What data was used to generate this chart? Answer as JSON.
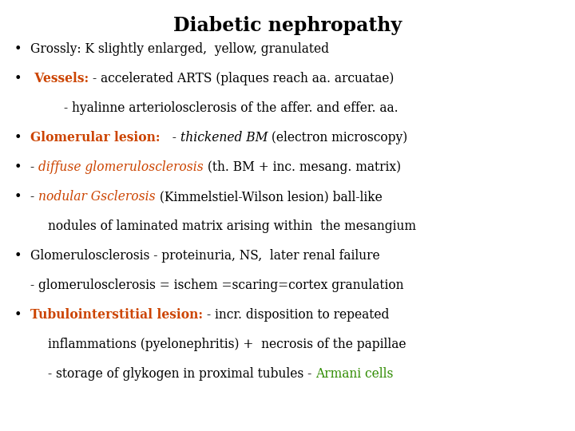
{
  "title": "Diabetic nephropathy",
  "title_color": "#000000",
  "title_fontsize": 17,
  "bg_color": "#ffffff",
  "orange": "#CC4400",
  "green": "#2E8B00",
  "black": "#000000",
  "body_fontsize": 11.2,
  "lines": [
    {
      "bullet": true,
      "indent": 0,
      "segments": [
        {
          "text": "Grossly: K slightly enlarged,  yellow, granulated",
          "color": "#000000",
          "bold": false,
          "italic": false
        }
      ]
    },
    {
      "bullet": true,
      "indent": 0,
      "segments": [
        {
          "text": " Vessels: ",
          "color": "#CC4400",
          "bold": true,
          "italic": false
        },
        {
          "text": "- accelerated ARTS (plaques reach aa. arcuatae)",
          "color": "#000000",
          "bold": false,
          "italic": false
        }
      ]
    },
    {
      "bullet": false,
      "indent": 2,
      "segments": [
        {
          "text": "- hyalinne arteriolosclerosis of the affer. and effer. aa.",
          "color": "#000000",
          "bold": false,
          "italic": false
        }
      ]
    },
    {
      "bullet": true,
      "indent": 0,
      "segments": [
        {
          "text": "Glomerular lesion: ",
          "color": "#CC4400",
          "bold": true,
          "italic": false
        },
        {
          "text": "  - ",
          "color": "#000000",
          "bold": false,
          "italic": false
        },
        {
          "text": "thickened BM",
          "color": "#000000",
          "bold": false,
          "italic": true
        },
        {
          "text": " (electron microscopy)",
          "color": "#000000",
          "bold": false,
          "italic": false
        }
      ]
    },
    {
      "bullet": true,
      "indent": 0,
      "segments": [
        {
          "text": "- ",
          "color": "#000000",
          "bold": false,
          "italic": false
        },
        {
          "text": "diffuse glomerulosclerosis",
          "color": "#CC4400",
          "bold": false,
          "italic": true
        },
        {
          "text": " (th. BM + inc. mesang. matrix)",
          "color": "#000000",
          "bold": false,
          "italic": false
        }
      ]
    },
    {
      "bullet": true,
      "indent": 0,
      "segments": [
        {
          "text": "- ",
          "color": "#000000",
          "bold": false,
          "italic": false
        },
        {
          "text": "nodular Gsclerosis",
          "color": "#CC4400",
          "bold": false,
          "italic": true
        },
        {
          "text": " (Kimmelstiel-Wilson lesion) ball-like",
          "color": "#000000",
          "bold": false,
          "italic": false
        }
      ]
    },
    {
      "bullet": false,
      "indent": 1,
      "segments": [
        {
          "text": "nodules of laminated matrix arising within  the mesangium",
          "color": "#000000",
          "bold": false,
          "italic": false
        }
      ]
    },
    {
      "bullet": true,
      "indent": 0,
      "segments": [
        {
          "text": "Glomerulosclerosis - proteinuria, NS,  later renal failure",
          "color": "#000000",
          "bold": false,
          "italic": false
        }
      ]
    },
    {
      "bullet": false,
      "indent": 0,
      "segments": [
        {
          "text": "- glomerulosclerosis = ischem =scaring=cortex granulation",
          "color": "#000000",
          "bold": false,
          "italic": false
        }
      ]
    },
    {
      "bullet": true,
      "indent": 0,
      "segments": [
        {
          "text": "Tubulointerstitial lesion: ",
          "color": "#CC4400",
          "bold": true,
          "italic": false
        },
        {
          "text": "- incr. disposition to repeated",
          "color": "#000000",
          "bold": false,
          "italic": false
        }
      ]
    },
    {
      "bullet": false,
      "indent": 1,
      "segments": [
        {
          "text": "inflammations (pyelonephritis) +  necrosis of the papillae",
          "color": "#000000",
          "bold": false,
          "italic": false
        }
      ]
    },
    {
      "bullet": false,
      "indent": 1,
      "segments": [
        {
          "text": "- storage of glykogen in proximal tubules - ",
          "color": "#000000",
          "bold": false,
          "italic": false
        },
        {
          "text": "Armani cells",
          "color": "#2E8B00",
          "bold": false,
          "italic": false
        }
      ]
    }
  ]
}
